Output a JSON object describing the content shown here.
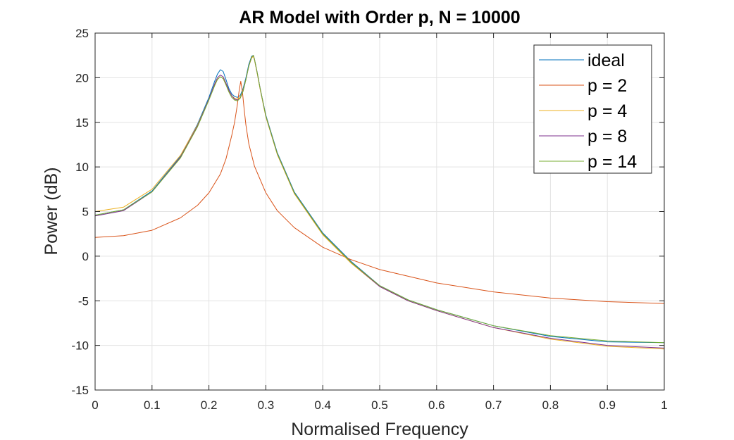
{
  "chart_data": {
    "type": "line",
    "title": "AR Model with Order p, N = 10000",
    "xlabel": "Normalised Frequency",
    "ylabel": "Power (dB)",
    "xlim": [
      0,
      1
    ],
    "ylim": [
      -15,
      25
    ],
    "xticks": [
      0,
      0.1,
      0.2,
      0.3,
      0.4,
      0.5,
      0.6,
      0.7,
      0.8,
      0.9,
      1
    ],
    "xtick_labels": [
      "0",
      "0.1",
      "0.2",
      "0.3",
      "0.4",
      "0.5",
      "0.6",
      "0.7",
      "0.8",
      "0.9",
      "1"
    ],
    "yticks": [
      -15,
      -10,
      -5,
      0,
      5,
      10,
      15,
      20,
      25
    ],
    "ytick_labels": [
      "-15",
      "-10",
      "-5",
      "0",
      "5",
      "10",
      "15",
      "20",
      "25"
    ],
    "grid": true,
    "legend_position": "top-right",
    "series": [
      {
        "name": "ideal",
        "color": "#0072BD",
        "x": [
          0,
          0.05,
          0.1,
          0.15,
          0.18,
          0.2,
          0.21,
          0.215,
          0.22,
          0.225,
          0.23,
          0.235,
          0.24,
          0.245,
          0.25,
          0.255,
          0.26,
          0.265,
          0.27,
          0.275,
          0.278,
          0.28,
          0.285,
          0.29,
          0.3,
          0.32,
          0.35,
          0.4,
          0.45,
          0.5,
          0.55,
          0.6,
          0.7,
          0.8,
          0.9,
          1.0
        ],
        "y": [
          4.6,
          5.2,
          7.3,
          11.2,
          14.8,
          17.8,
          19.6,
          20.4,
          20.9,
          20.7,
          19.8,
          18.8,
          18.2,
          17.9,
          17.8,
          18.0,
          18.8,
          20.0,
          21.5,
          22.4,
          22.5,
          22.1,
          20.5,
          18.8,
          15.8,
          11.6,
          7.2,
          2.6,
          -0.6,
          -3.3,
          -4.9,
          -6.0,
          -7.8,
          -9.0,
          -9.6,
          -9.7
        ]
      },
      {
        "name": "p = 2",
        "color": "#D95319",
        "x": [
          0,
          0.05,
          0.1,
          0.15,
          0.18,
          0.2,
          0.22,
          0.23,
          0.24,
          0.245,
          0.25,
          0.253,
          0.256,
          0.259,
          0.262,
          0.265,
          0.27,
          0.28,
          0.3,
          0.32,
          0.35,
          0.4,
          0.45,
          0.5,
          0.6,
          0.7,
          0.8,
          0.9,
          1.0
        ],
        "y": [
          2.1,
          2.3,
          2.9,
          4.3,
          5.7,
          7.1,
          9.2,
          10.9,
          13.5,
          15.0,
          17.0,
          18.5,
          19.6,
          18.3,
          16.4,
          14.7,
          12.6,
          10.1,
          7.1,
          5.1,
          3.2,
          1.0,
          -0.4,
          -1.5,
          -3.0,
          -4.0,
          -4.7,
          -5.1,
          -5.3
        ]
      },
      {
        "name": "p = 4",
        "color": "#EDB120",
        "x": [
          0,
          0.05,
          0.1,
          0.15,
          0.18,
          0.2,
          0.21,
          0.215,
          0.22,
          0.225,
          0.23,
          0.235,
          0.24,
          0.245,
          0.25,
          0.255,
          0.26,
          0.265,
          0.27,
          0.275,
          0.278,
          0.28,
          0.285,
          0.29,
          0.3,
          0.32,
          0.35,
          0.4,
          0.45,
          0.5,
          0.55,
          0.6,
          0.7,
          0.8,
          0.9,
          1.0
        ],
        "y": [
          5.0,
          5.5,
          7.5,
          11.3,
          14.7,
          17.6,
          19.2,
          19.8,
          20.1,
          19.9,
          19.2,
          18.5,
          18.0,
          17.7,
          17.6,
          17.8,
          18.6,
          19.8,
          21.3,
          22.2,
          22.4,
          22.0,
          20.4,
          18.7,
          15.6,
          11.4,
          7.0,
          2.4,
          -0.8,
          -3.4,
          -5.0,
          -6.1,
          -8.0,
          -9.3,
          -10.1,
          -10.4
        ]
      },
      {
        "name": "p = 8",
        "color": "#7E2F8E",
        "x": [
          0,
          0.05,
          0.1,
          0.15,
          0.18,
          0.2,
          0.21,
          0.215,
          0.22,
          0.225,
          0.23,
          0.235,
          0.24,
          0.245,
          0.25,
          0.255,
          0.26,
          0.265,
          0.27,
          0.275,
          0.278,
          0.28,
          0.285,
          0.29,
          0.3,
          0.32,
          0.35,
          0.4,
          0.45,
          0.5,
          0.55,
          0.6,
          0.7,
          0.8,
          0.9,
          1.0
        ],
        "y": [
          4.5,
          5.1,
          7.2,
          11.1,
          14.6,
          17.6,
          19.3,
          20.0,
          20.3,
          20.1,
          19.4,
          18.6,
          18.0,
          17.6,
          17.5,
          17.7,
          18.5,
          19.8,
          21.3,
          22.3,
          22.5,
          22.1,
          20.5,
          18.8,
          15.7,
          11.5,
          7.1,
          2.5,
          -0.7,
          -3.4,
          -5.0,
          -6.1,
          -8.0,
          -9.2,
          -10.0,
          -10.3
        ]
      },
      {
        "name": "p = 14",
        "color": "#77AC30",
        "x": [
          0,
          0.05,
          0.1,
          0.15,
          0.18,
          0.2,
          0.21,
          0.215,
          0.22,
          0.225,
          0.23,
          0.235,
          0.24,
          0.245,
          0.25,
          0.255,
          0.26,
          0.265,
          0.27,
          0.275,
          0.278,
          0.28,
          0.285,
          0.29,
          0.3,
          0.32,
          0.35,
          0.4,
          0.45,
          0.5,
          0.55,
          0.6,
          0.7,
          0.8,
          0.9,
          1.0
        ],
        "y": [
          4.6,
          5.2,
          7.2,
          11.0,
          14.5,
          17.5,
          19.1,
          19.8,
          20.1,
          19.9,
          19.2,
          18.4,
          17.8,
          17.5,
          17.4,
          17.7,
          18.5,
          19.8,
          21.3,
          22.3,
          22.5,
          22.1,
          20.5,
          18.8,
          15.7,
          11.5,
          7.1,
          2.5,
          -0.7,
          -3.3,
          -4.9,
          -6.0,
          -7.8,
          -8.9,
          -9.5,
          -9.7
        ]
      }
    ]
  }
}
